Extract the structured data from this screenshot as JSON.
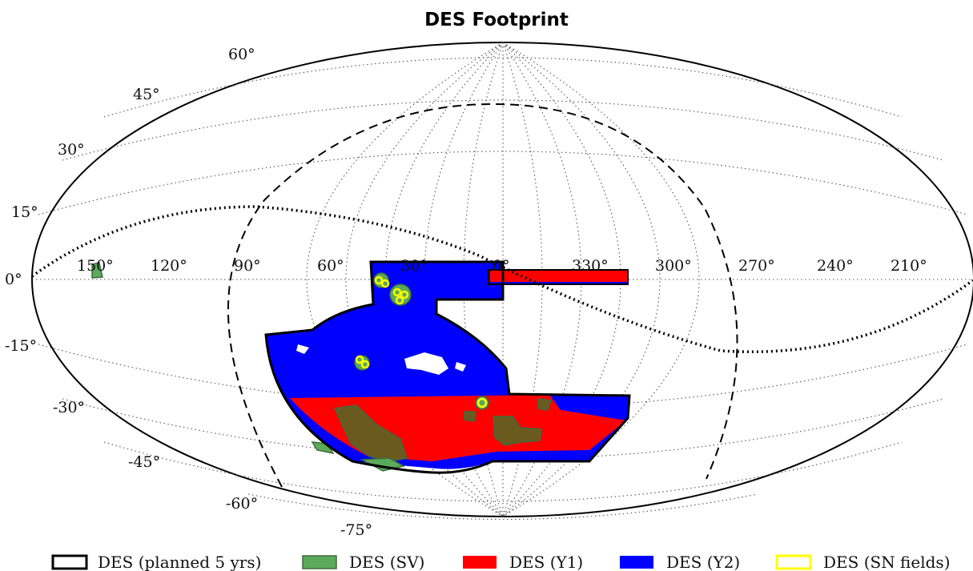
{
  "title": "DES Footprint",
  "lat_labels": [
    "60°",
    "45°",
    "30°",
    "15°",
    "0°",
    "-15°",
    "-30°",
    "-45°",
    "-60°",
    "-75°"
  ],
  "lon_labels": [
    "150°",
    "120°",
    "90°",
    "60°",
    "30°",
    "0°",
    "330°",
    "300°",
    "270°",
    "240°",
    "210°"
  ],
  "legend": [
    {
      "label": "DES (planned 5 yrs)",
      "color": "#000000",
      "style": "outline"
    },
    {
      "label": "DES (SV)",
      "color": "#5aaa5a",
      "style": "fill"
    },
    {
      "label": "DES (Y1)",
      "color": "#ff0000",
      "style": "fill"
    },
    {
      "label": "DES (Y2)",
      "color": "#0000ff",
      "style": "fill"
    },
    {
      "label": "DES (SN fields)",
      "color": "#ffff00",
      "style": "outline"
    }
  ],
  "colors": {
    "outline": "#000000",
    "sv": "#5aaa5a",
    "sv_overlap": "#6b5a1e",
    "y1": "#ff0000",
    "y2": "#0000ff",
    "sn": "#ffff00"
  },
  "projection": "mollweide",
  "curves": {
    "milky_way_plane": "dotted",
    "boundary": "dashed"
  }
}
